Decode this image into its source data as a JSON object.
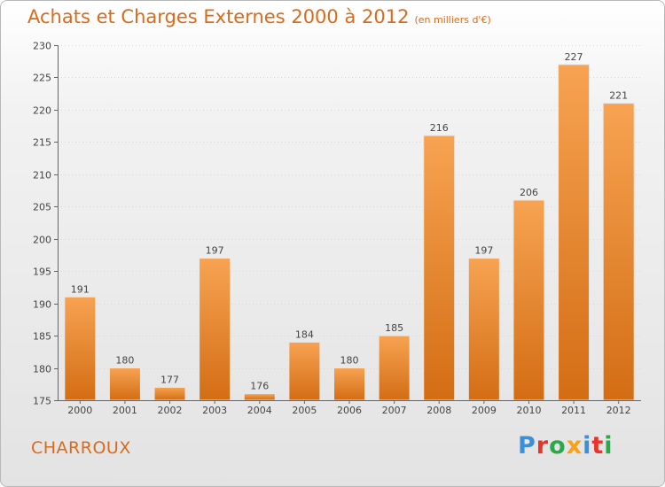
{
  "header": {
    "title": "Achats et Charges Externes 2000 à 2012",
    "subtitle": "(en milliers d'€)"
  },
  "footer": {
    "town": "CHARROUX",
    "logo_text": "Proxiti",
    "logo_colors": [
      "#3b8fd9",
      "#e8342a",
      "#2aa84a",
      "#f5a31a",
      "#3b8fd9",
      "#e8342a",
      "#2aa84a"
    ]
  },
  "chart_data": {
    "type": "bar",
    "categories": [
      "2000",
      "2001",
      "2002",
      "2003",
      "2004",
      "2005",
      "2006",
      "2007",
      "2008",
      "2009",
      "2010",
      "2011",
      "2012"
    ],
    "values": [
      191,
      180,
      177,
      197,
      176,
      184,
      180,
      185,
      216,
      197,
      206,
      227,
      221
    ],
    "ylim": [
      175,
      230
    ],
    "yticks": [
      175,
      180,
      185,
      190,
      195,
      200,
      205,
      210,
      215,
      220,
      225,
      230
    ],
    "grid": true,
    "bar_color": "#f0922f",
    "legend": "none"
  }
}
